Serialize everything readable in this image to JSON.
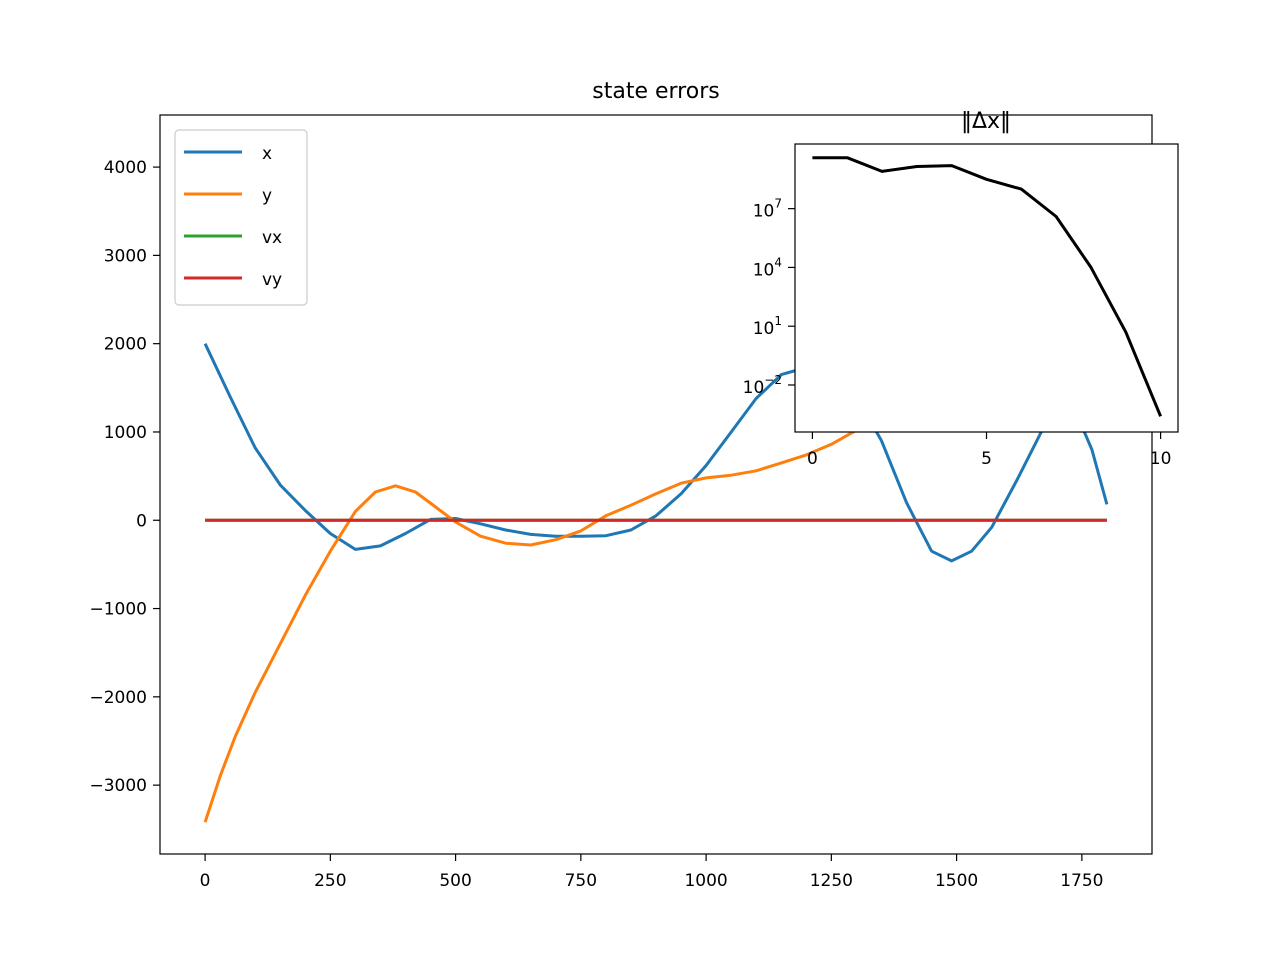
{
  "chart_data": [
    {
      "type": "line",
      "title": "state errors",
      "xlabel": "",
      "ylabel": "",
      "xlim": [
        -90,
        1890
      ],
      "ylim": [
        -3780,
        4590
      ],
      "xticks": [
        0,
        250,
        500,
        750,
        1000,
        1250,
        1500,
        1750
      ],
      "yticks": [
        -3000,
        -2000,
        -1000,
        0,
        1000,
        2000,
        3000,
        4000
      ],
      "xtick_labels": [
        "0",
        "250",
        "500",
        "750",
        "1000",
        "1250",
        "1500",
        "1750"
      ],
      "ytick_labels": [
        "−3000",
        "−2000",
        "−1000",
        "0",
        "1000",
        "2000",
        "3000",
        "4000"
      ],
      "grid": false,
      "legend": "upper-left",
      "series": [
        {
          "name": "x",
          "color": "#1f77b4",
          "points": [
            [
              0,
              2000
            ],
            [
              50,
              1400
            ],
            [
              100,
              820
            ],
            [
              150,
              400
            ],
            [
              200,
              110
            ],
            [
              250,
              -150
            ],
            [
              300,
              -330
            ],
            [
              350,
              -290
            ],
            [
              400,
              -150
            ],
            [
              450,
              10
            ],
            [
              500,
              20
            ],
            [
              550,
              -40
            ],
            [
              600,
              -110
            ],
            [
              650,
              -160
            ],
            [
              700,
              -180
            ],
            [
              750,
              -180
            ],
            [
              800,
              -175
            ],
            [
              850,
              -110
            ],
            [
              900,
              50
            ],
            [
              950,
              300
            ],
            [
              1000,
              620
            ],
            [
              1050,
              1000
            ],
            [
              1100,
              1380
            ],
            [
              1150,
              1650
            ],
            [
              1200,
              1730
            ],
            [
              1250,
              1650
            ],
            [
              1300,
              1400
            ],
            [
              1350,
              900
            ],
            [
              1400,
              200
            ],
            [
              1450,
              -350
            ],
            [
              1490,
              -460
            ],
            [
              1530,
              -350
            ],
            [
              1570,
              -80
            ],
            [
              1620,
              450
            ],
            [
              1660,
              900
            ],
            [
              1700,
              1350
            ],
            [
              1740,
              1200
            ],
            [
              1770,
              800
            ],
            [
              1800,
              180
            ]
          ]
        },
        {
          "name": "y",
          "color": "#ff7f0e",
          "points": [
            [
              0,
              -3420
            ],
            [
              30,
              -2900
            ],
            [
              60,
              -2450
            ],
            [
              100,
              -1950
            ],
            [
              150,
              -1400
            ],
            [
              200,
              -850
            ],
            [
              250,
              -350
            ],
            [
              300,
              100
            ],
            [
              340,
              320
            ],
            [
              380,
              390
            ],
            [
              420,
              320
            ],
            [
              460,
              150
            ],
            [
              500,
              -20
            ],
            [
              550,
              -180
            ],
            [
              600,
              -260
            ],
            [
              650,
              -280
            ],
            [
              700,
              -220
            ],
            [
              750,
              -120
            ],
            [
              800,
              50
            ],
            [
              850,
              170
            ],
            [
              900,
              300
            ],
            [
              950,
              420
            ],
            [
              1000,
              480
            ],
            [
              1050,
              510
            ],
            [
              1100,
              560
            ],
            [
              1150,
              650
            ],
            [
              1200,
              740
            ],
            [
              1250,
              860
            ],
            [
              1300,
              1020
            ],
            [
              1340,
              1200
            ]
          ]
        },
        {
          "name": "vx",
          "color": "#2ca02c",
          "points": [
            [
              0,
              0
            ],
            [
              1800,
              0
            ]
          ]
        },
        {
          "name": "vy",
          "color": "#d62728",
          "points": [
            [
              0,
              0
            ],
            [
              1800,
              0
            ]
          ]
        }
      ]
    },
    {
      "type": "line",
      "title": "‖Δx‖",
      "xlabel": "",
      "ylabel": "",
      "yscale": "log",
      "xlim": [
        -0.5,
        10.5
      ],
      "ylim_log10": [
        -4.4,
        10.3
      ],
      "xticks": [
        0,
        5,
        10
      ],
      "xtick_labels": [
        "0",
        "5",
        "10"
      ],
      "yticks_log10": [
        -2,
        1,
        4,
        7
      ],
      "ytick_labels": [
        {
          "base": "10",
          "exp": "−2"
        },
        {
          "base": "10",
          "exp": "1"
        },
        {
          "base": "10",
          "exp": "4"
        },
        {
          "base": "10",
          "exp": "7"
        }
      ],
      "grid": false,
      "series": [
        {
          "color": "#000000",
          "x": [
            0,
            1,
            2,
            3,
            4,
            5,
            6,
            7,
            8,
            9,
            10
          ],
          "y_log10": [
            9.6,
            9.6,
            8.9,
            9.15,
            9.2,
            8.5,
            8.0,
            6.6,
            4.0,
            0.7,
            -3.6
          ]
        }
      ]
    }
  ]
}
